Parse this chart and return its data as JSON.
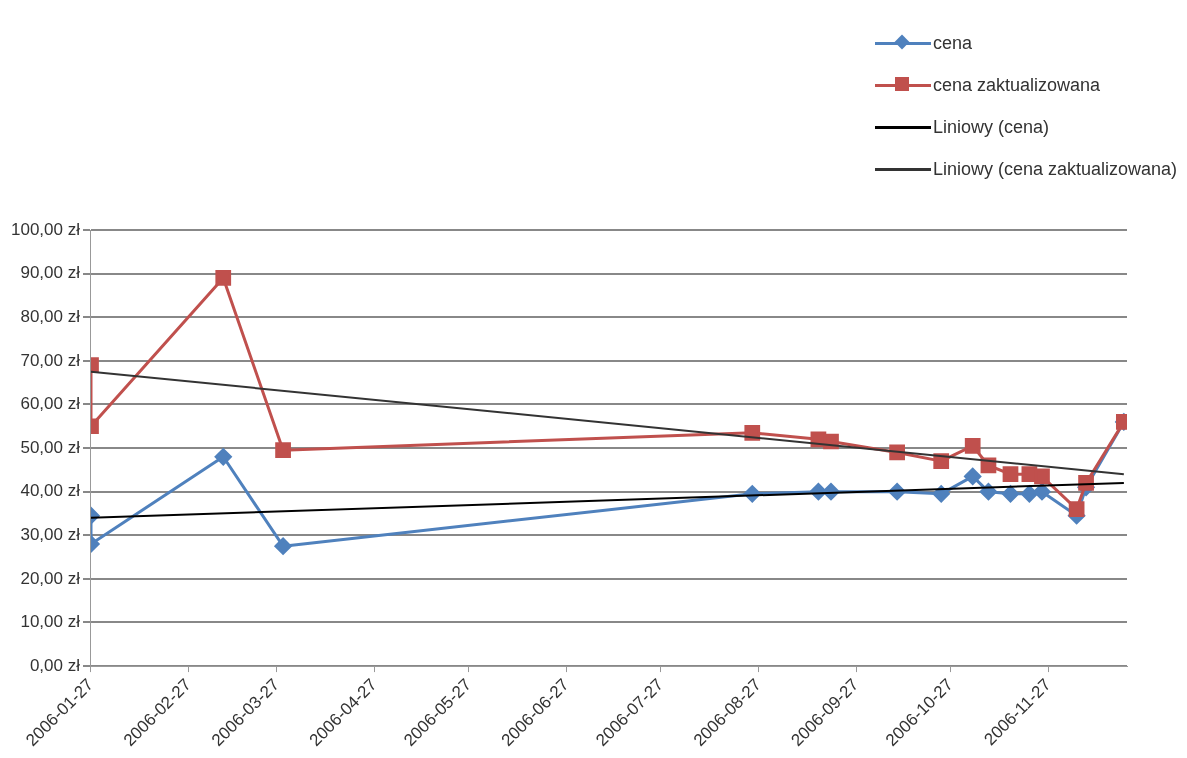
{
  "chart_data": {
    "type": "line",
    "legend": "top right",
    "grid": "y",
    "xlim": [
      "2006-01-27",
      "2006-12-22"
    ],
    "xticks": [
      "2006-01-27",
      "2006-02-27",
      "2006-03-27",
      "2006-04-27",
      "2006-05-27",
      "2006-06-27",
      "2006-07-27",
      "2006-08-27",
      "2006-09-27",
      "2006-10-27",
      "2006-11-27"
    ],
    "ylim": [
      0,
      100
    ],
    "yticks": [
      {
        "value": 0,
        "label": "0,00 zł"
      },
      {
        "value": 10,
        "label": "10,00 zł"
      },
      {
        "value": 20,
        "label": "20,00 zł"
      },
      {
        "value": 30,
        "label": "30,00 zł"
      },
      {
        "value": 40,
        "label": "40,00 zł"
      },
      {
        "value": 50,
        "label": "50,00 zł"
      },
      {
        "value": 60,
        "label": "60,00 zł"
      },
      {
        "value": 70,
        "label": "70,00 zł"
      },
      {
        "value": 80,
        "label": "80,00 zł"
      },
      {
        "value": 90,
        "label": "90,00 zł"
      },
      {
        "value": 100,
        "label": "100,00 zł"
      }
    ],
    "x": [
      "2006-01-27",
      "2006-01-27",
      "2006-03-10",
      "2006-03-29",
      "2006-08-25",
      "2006-09-15",
      "2006-09-19",
      "2006-10-10",
      "2006-10-24",
      "2006-11-03",
      "2006-11-08",
      "2006-11-15",
      "2006-11-21",
      "2006-11-25",
      "2006-12-06",
      "2006-12-09",
      "2006-12-21"
    ],
    "series": [
      {
        "name": "cena",
        "color": "#4f81bd",
        "marker": "diamond",
        "values": [
          34.5,
          28,
          48,
          27.5,
          39.5,
          40,
          40,
          40,
          39.5,
          43.5,
          40,
          39.5,
          39.5,
          40,
          34.5,
          41,
          56
        ]
      },
      {
        "name": "cena zaktualizowana",
        "color": "#c0504d",
        "marker": "square",
        "values": [
          69,
          55,
          89,
          49.5,
          53.5,
          52,
          51.5,
          49,
          47,
          50.5,
          46,
          44,
          44,
          43.5,
          36,
          42,
          56
        ]
      },
      {
        "name": "Liniowy (cena)",
        "type": "line",
        "color": "#000000",
        "marker": "none",
        "x": [
          "2006-01-27",
          "2006-12-21"
        ],
        "values": [
          34,
          42
        ]
      },
      {
        "name": "Liniowy (cena zaktualizowana)",
        "type": "line",
        "color": "#333333",
        "marker": "none",
        "x": [
          "2006-01-27",
          "2006-12-21"
        ],
        "values": [
          67.5,
          44
        ]
      }
    ]
  }
}
